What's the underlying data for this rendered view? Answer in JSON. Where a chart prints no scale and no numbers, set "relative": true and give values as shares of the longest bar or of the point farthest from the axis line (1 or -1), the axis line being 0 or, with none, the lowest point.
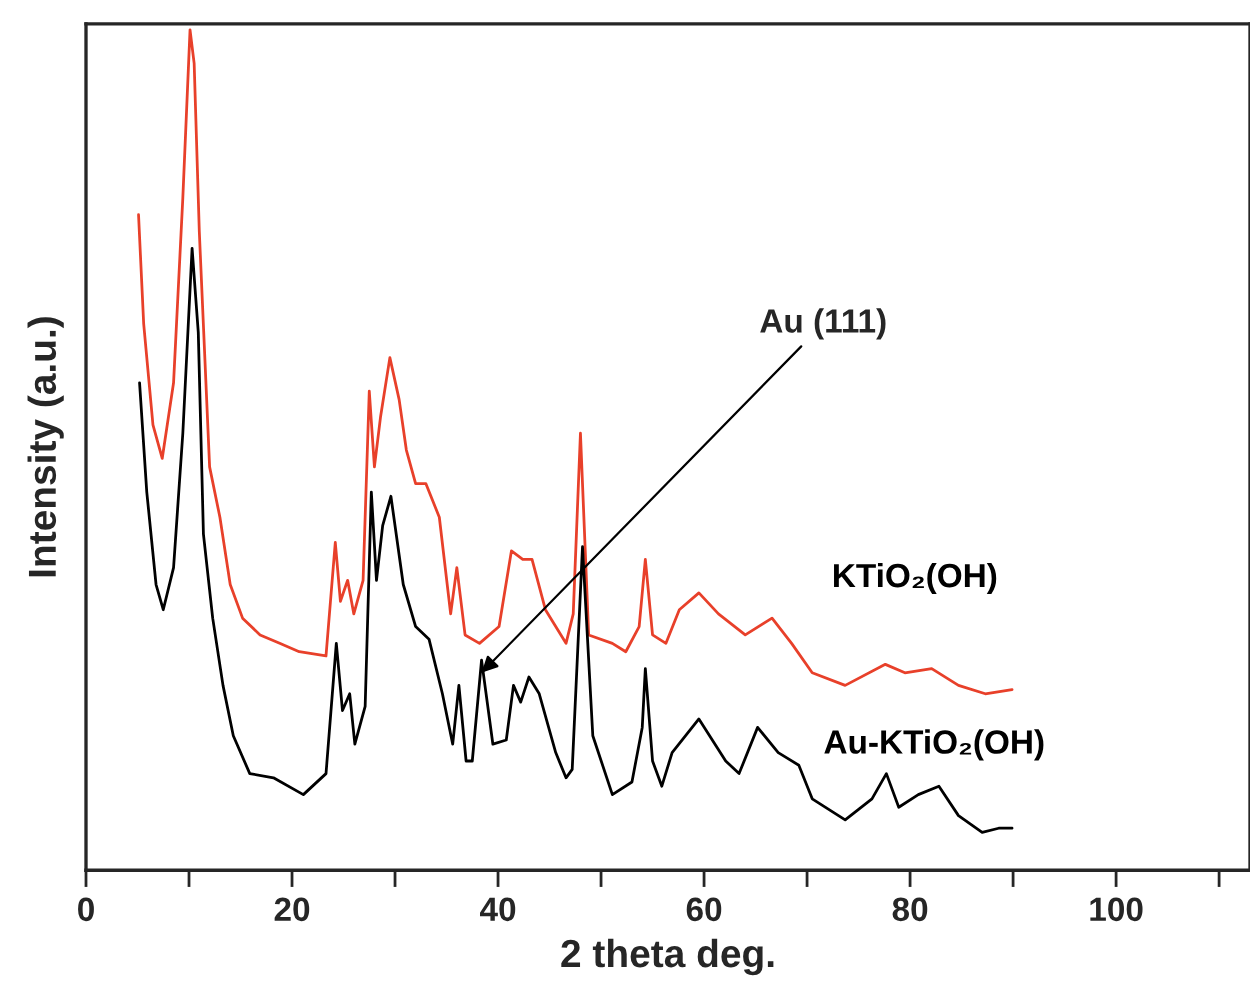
{
  "chart_data": {
    "type": "line",
    "relative": true,
    "xlabel": "2 theta deg.",
    "ylabel": "Intensity (a.u.)",
    "xlim": [
      0,
      113
    ],
    "xticks": [
      0,
      {
        "value": 10,
        "label": null
      },
      20,
      {
        "value": 30,
        "label": null
      },
      40,
      {
        "value": 50,
        "label": null
      },
      60,
      {
        "value": 70,
        "label": null
      },
      80,
      {
        "value": 90,
        "label": null
      },
      100,
      {
        "value": 110,
        "label": null
      }
    ],
    "tick_labels": "x",
    "grid": false,
    "marker": "none",
    "line_style": "solid",
    "annotations": [
      {
        "text": "Au (111)",
        "x": 38.4,
        "y": 0.235
      }
    ],
    "series": [
      {
        "name": "KTiO₂(OH)",
        "color": "#e8402a",
        "x": [
          5.1,
          5.6,
          6.5,
          7.4,
          8.5,
          9.4,
          10.1,
          10.5,
          11.0,
          12.0,
          13.0,
          14.0,
          15.2,
          16.9,
          18.8,
          20.7,
          23.3,
          24.2,
          24.7,
          25.4,
          26.0,
          26.9,
          27.5,
          28.0,
          28.6,
          29.5,
          30.4,
          31.1,
          32.0,
          33.0,
          34.3,
          35.4,
          36.0,
          36.8,
          38.2,
          40.1,
          41.3,
          42.4,
          43.3,
          44.6,
          46.6,
          47.3,
          48.0,
          48.8,
          51.1,
          52.4,
          53.7,
          54.3,
          55.0,
          56.3,
          57.6,
          59.5,
          61.4,
          64.0,
          66.6,
          68.5,
          70.5,
          73.7,
          77.6,
          79.5,
          82.1,
          84.7,
          87.3,
          89.9
        ],
        "values": [
          0.78,
          0.65,
          0.53,
          0.49,
          0.58,
          0.8,
          1.0,
          0.96,
          0.76,
          0.48,
          0.42,
          0.34,
          0.3,
          0.28,
          0.27,
          0.26,
          0.255,
          0.39,
          0.32,
          0.345,
          0.305,
          0.345,
          0.57,
          0.48,
          0.54,
          0.61,
          0.56,
          0.5,
          0.46,
          0.46,
          0.42,
          0.305,
          0.36,
          0.28,
          0.27,
          0.29,
          0.38,
          0.37,
          0.37,
          0.31,
          0.27,
          0.305,
          0.52,
          0.28,
          0.27,
          0.26,
          0.29,
          0.37,
          0.28,
          0.27,
          0.31,
          0.33,
          0.305,
          0.28,
          0.3,
          0.27,
          0.235,
          0.22,
          0.245,
          0.235,
          0.24,
          0.22,
          0.21,
          0.215
        ]
      },
      {
        "name": "Au-KTiO₂(OH)",
        "color": "#000000",
        "x": [
          5.2,
          5.9,
          6.8,
          7.5,
          8.5,
          9.4,
          10.3,
          10.9,
          11.4,
          12.3,
          13.3,
          14.3,
          15.9,
          18.2,
          21.1,
          23.3,
          24.3,
          24.9,
          25.6,
          26.1,
          27.1,
          27.7,
          28.2,
          28.8,
          29.6,
          30.8,
          32.0,
          33.3,
          34.6,
          35.6,
          36.2,
          36.9,
          37.5,
          38.4,
          39.5,
          40.8,
          41.5,
          42.2,
          43.0,
          44.0,
          45.6,
          46.6,
          47.2,
          48.2,
          49.2,
          51.1,
          53.0,
          54.0,
          54.3,
          55.0,
          55.9,
          56.9,
          59.5,
          62.1,
          63.4,
          65.2,
          67.2,
          69.2,
          70.5,
          73.7,
          76.3,
          77.7,
          78.9,
          80.8,
          82.8,
          84.7,
          87.0,
          88.6,
          89.9
        ],
        "values": [
          0.58,
          0.45,
          0.34,
          0.31,
          0.36,
          0.52,
          0.74,
          0.64,
          0.4,
          0.3,
          0.22,
          0.16,
          0.115,
          0.11,
          0.09,
          0.115,
          0.27,
          0.19,
          0.21,
          0.15,
          0.195,
          0.45,
          0.345,
          0.41,
          0.445,
          0.34,
          0.29,
          0.275,
          0.21,
          0.15,
          0.22,
          0.13,
          0.13,
          0.25,
          0.15,
          0.155,
          0.22,
          0.2,
          0.23,
          0.21,
          0.14,
          0.11,
          0.12,
          0.385,
          0.16,
          0.09,
          0.105,
          0.17,
          0.24,
          0.13,
          0.1,
          0.14,
          0.18,
          0.13,
          0.115,
          0.17,
          0.14,
          0.125,
          0.085,
          0.06,
          0.085,
          0.115,
          0.075,
          0.09,
          0.1,
          0.065,
          0.045,
          0.05,
          0.05
        ]
      }
    ]
  }
}
